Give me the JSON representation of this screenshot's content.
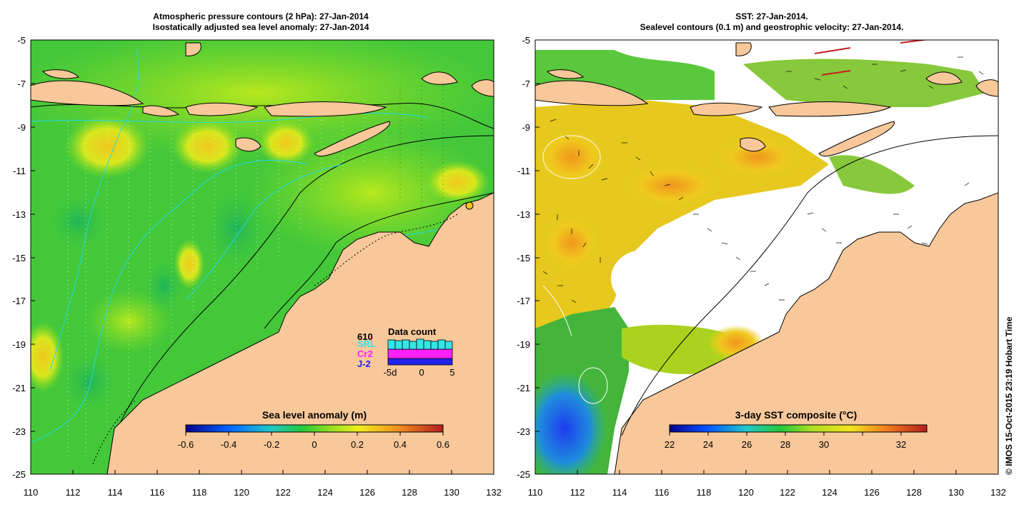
{
  "left_panel": {
    "title_line1": "Atmospheric pressure contours (2 hPa): 27-Jan-2014",
    "title_line2": "Isostatically adjusted sea level anomaly: 27-Jan-2014",
    "colorbar_label": "Sea level anomaly (m)",
    "colorbar_ticks": [
      "-0.6",
      "-0.4",
      "-0.2",
      "0",
      "0.2",
      "0.4",
      "0.6"
    ],
    "data_count": {
      "title": "Data count",
      "total": "610",
      "satellites": [
        {
          "label": "SRL",
          "color": "#33e6e6"
        },
        {
          "label": "Cr2",
          "color": "#ff22ff"
        },
        {
          "label": "J-2",
          "color": "#2222ee"
        }
      ],
      "axis_ticks": [
        "-5d",
        "0",
        "5"
      ]
    }
  },
  "right_panel": {
    "title_line1": "SST: 27-Jan-2014.",
    "title_line2": "Sealevel contours (0.1 m) and geostrophic velocity: 27-Jan-2014.",
    "colorbar_label": "3-day SST composite (°C)",
    "colorbar_ticks": [
      "22",
      "24",
      "26",
      "28",
      "30",
      "32"
    ]
  },
  "axes": {
    "lat_ticks": [
      "-5",
      "-7",
      "-9",
      "-11",
      "-13",
      "-15",
      "-17",
      "-19",
      "-21",
      "-23",
      "-25"
    ],
    "lon_ticks": [
      "110",
      "112",
      "114",
      "116",
      "118",
      "120",
      "122",
      "124",
      "126",
      "128",
      "130",
      "132"
    ]
  },
  "credit": "© IMOS 15-Oct-2015 23:19 Hobart Time",
  "colors": {
    "land": "#f8c89a",
    "ocean_green": "#3ec83c",
    "ocean_light": "#88dd22",
    "ocean_yellow": "#e6e61e",
    "ocean_orange": "#f0a01e",
    "nodata": "#ffffff"
  }
}
